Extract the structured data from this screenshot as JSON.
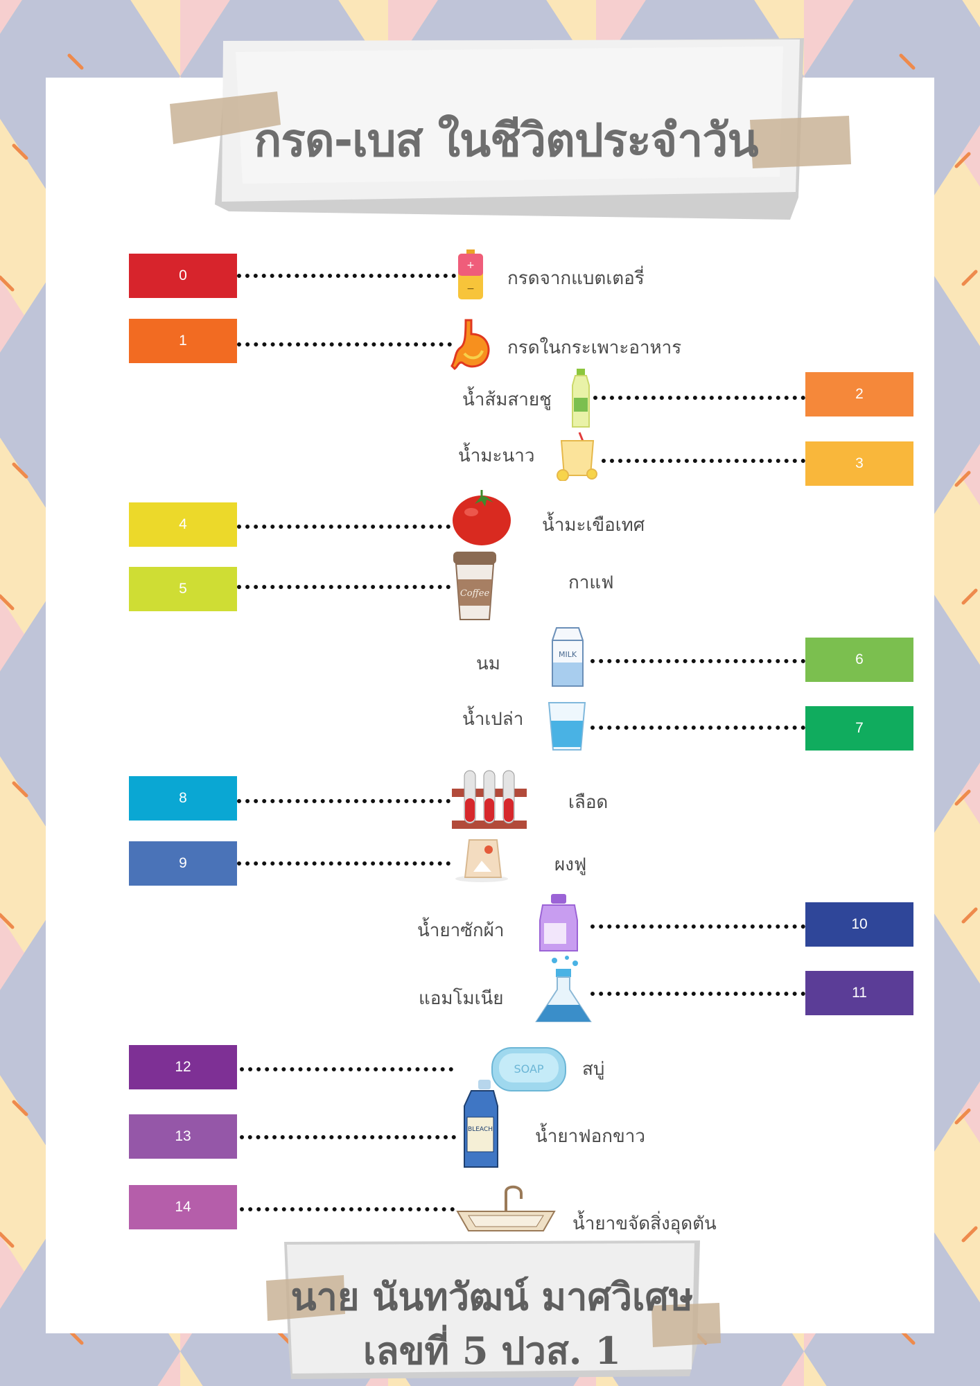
{
  "title": "กรด-เบส ในชีวิตประจำวัน",
  "items": [
    {
      "ph": "0",
      "label": "กรดจากแบตเตอรี่",
      "color": "#d7242c",
      "icon": "battery-icon"
    },
    {
      "ph": "1",
      "label": "กรดในกระเพาะอาหาร",
      "color": "#f26b22",
      "icon": "stomach-icon"
    },
    {
      "ph": "2",
      "label": "น้ำส้มสายชู",
      "color": "#f5883a",
      "icon": "vinegar-bottle-icon"
    },
    {
      "ph": "3",
      "label": "น้ำมะนาว",
      "color": "#f9b73b",
      "icon": "lemonade-icon"
    },
    {
      "ph": "4",
      "label": "น้ำมะเขือเทศ",
      "color": "#ecd92a",
      "icon": "tomato-icon"
    },
    {
      "ph": "5",
      "label": "กาแฟ",
      "color": "#cfdd34",
      "icon": "coffee-cup-icon"
    },
    {
      "ph": "6",
      "label": "นม",
      "color": "#7bbf4f",
      "icon": "milk-carton-icon"
    },
    {
      "ph": "7",
      "label": "น้ำเปล่า",
      "color": "#10ac5e",
      "icon": "water-glass-icon"
    },
    {
      "ph": "8",
      "label": "เลือด",
      "color": "#0aa7d3",
      "icon": "blood-tubes-icon"
    },
    {
      "ph": "9",
      "label": "ผงฟู",
      "color": "#4a73b8",
      "icon": "baking-powder-icon"
    },
    {
      "ph": "10",
      "label": "น้ำยาซักผ้า",
      "color": "#2f4699",
      "icon": "detergent-bottle-icon"
    },
    {
      "ph": "11",
      "label": "แอมโมเนีย",
      "color": "#5b3d97",
      "icon": "ammonia-flask-icon"
    },
    {
      "ph": "12",
      "label": "สบู่",
      "color": "#7e3095",
      "icon": "soap-icon"
    },
    {
      "ph": "13",
      "label": "น้ำยาฟอกขาว",
      "color": "#9557a8",
      "icon": "bleach-bottle-icon"
    },
    {
      "ph": "14",
      "label": "น้ำยาขจัดสิ่งอุดตัน",
      "color": "#b55eaa",
      "icon": "sink-icon"
    }
  ],
  "icon_text": {
    "soap": "SOAP",
    "bleach": "BLEACH",
    "coffee": "Coffee",
    "milk": "MILK"
  },
  "footer": {
    "name": "นาย นันทวัฒน์ มาศวิเศษ",
    "student_id": "เลขที่ 5 ปวส. 1"
  }
}
